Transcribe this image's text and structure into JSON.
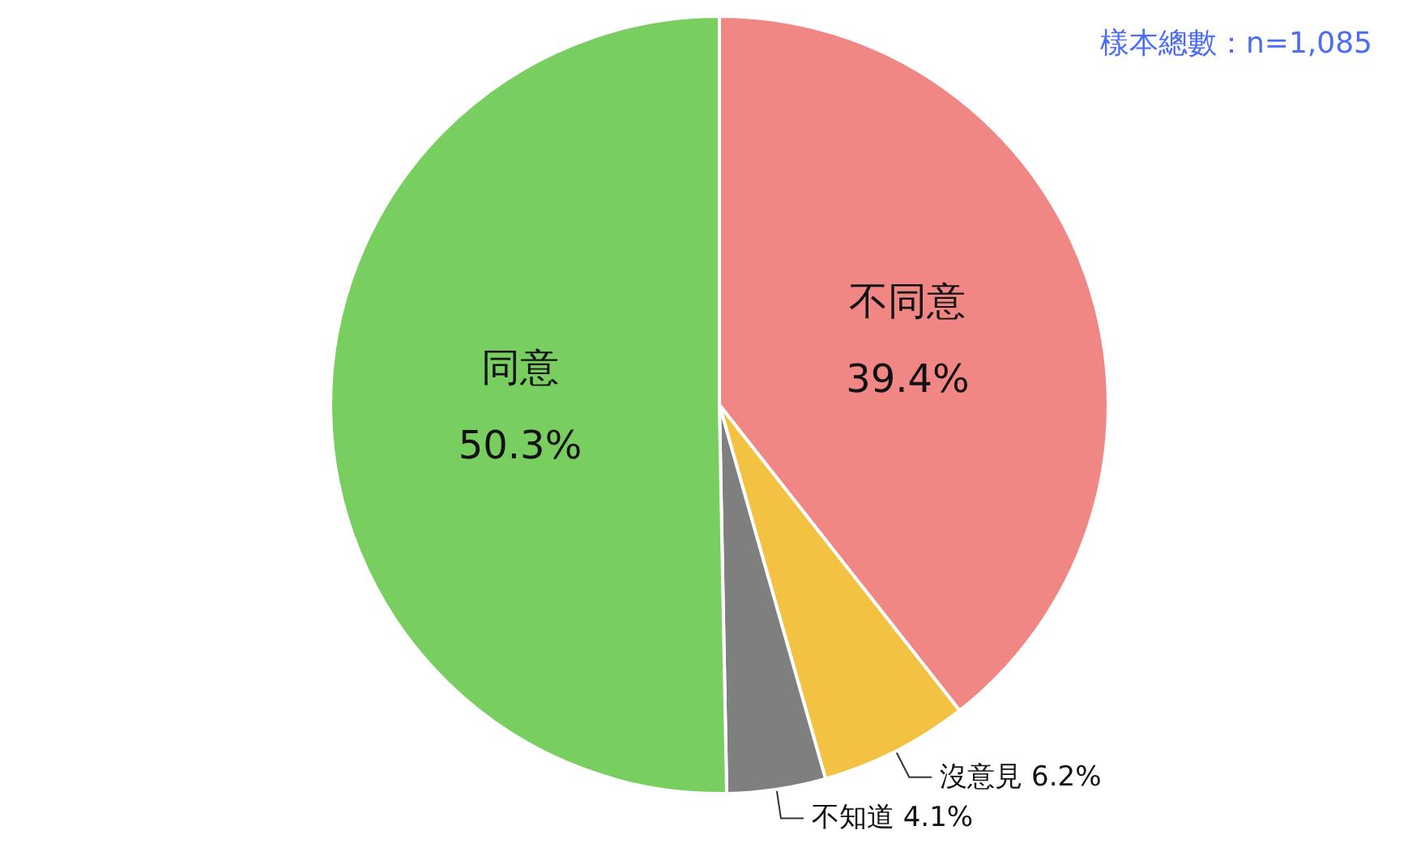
{
  "chart_data": {
    "type": "pie",
    "categories": [
      "不同意",
      "沒意見",
      "不知道",
      "同意"
    ],
    "values": [
      39.4,
      6.2,
      4.1,
      50.3
    ],
    "colors": [
      "#f08784",
      "#f3c242",
      "#7f7f7f",
      "#78cf5f"
    ],
    "value_labels": [
      "39.4%",
      "6.2%",
      "4.1%",
      "50.3%"
    ],
    "annotations": [
      "樣本總數：n=1,085"
    ],
    "legend": false
  }
}
